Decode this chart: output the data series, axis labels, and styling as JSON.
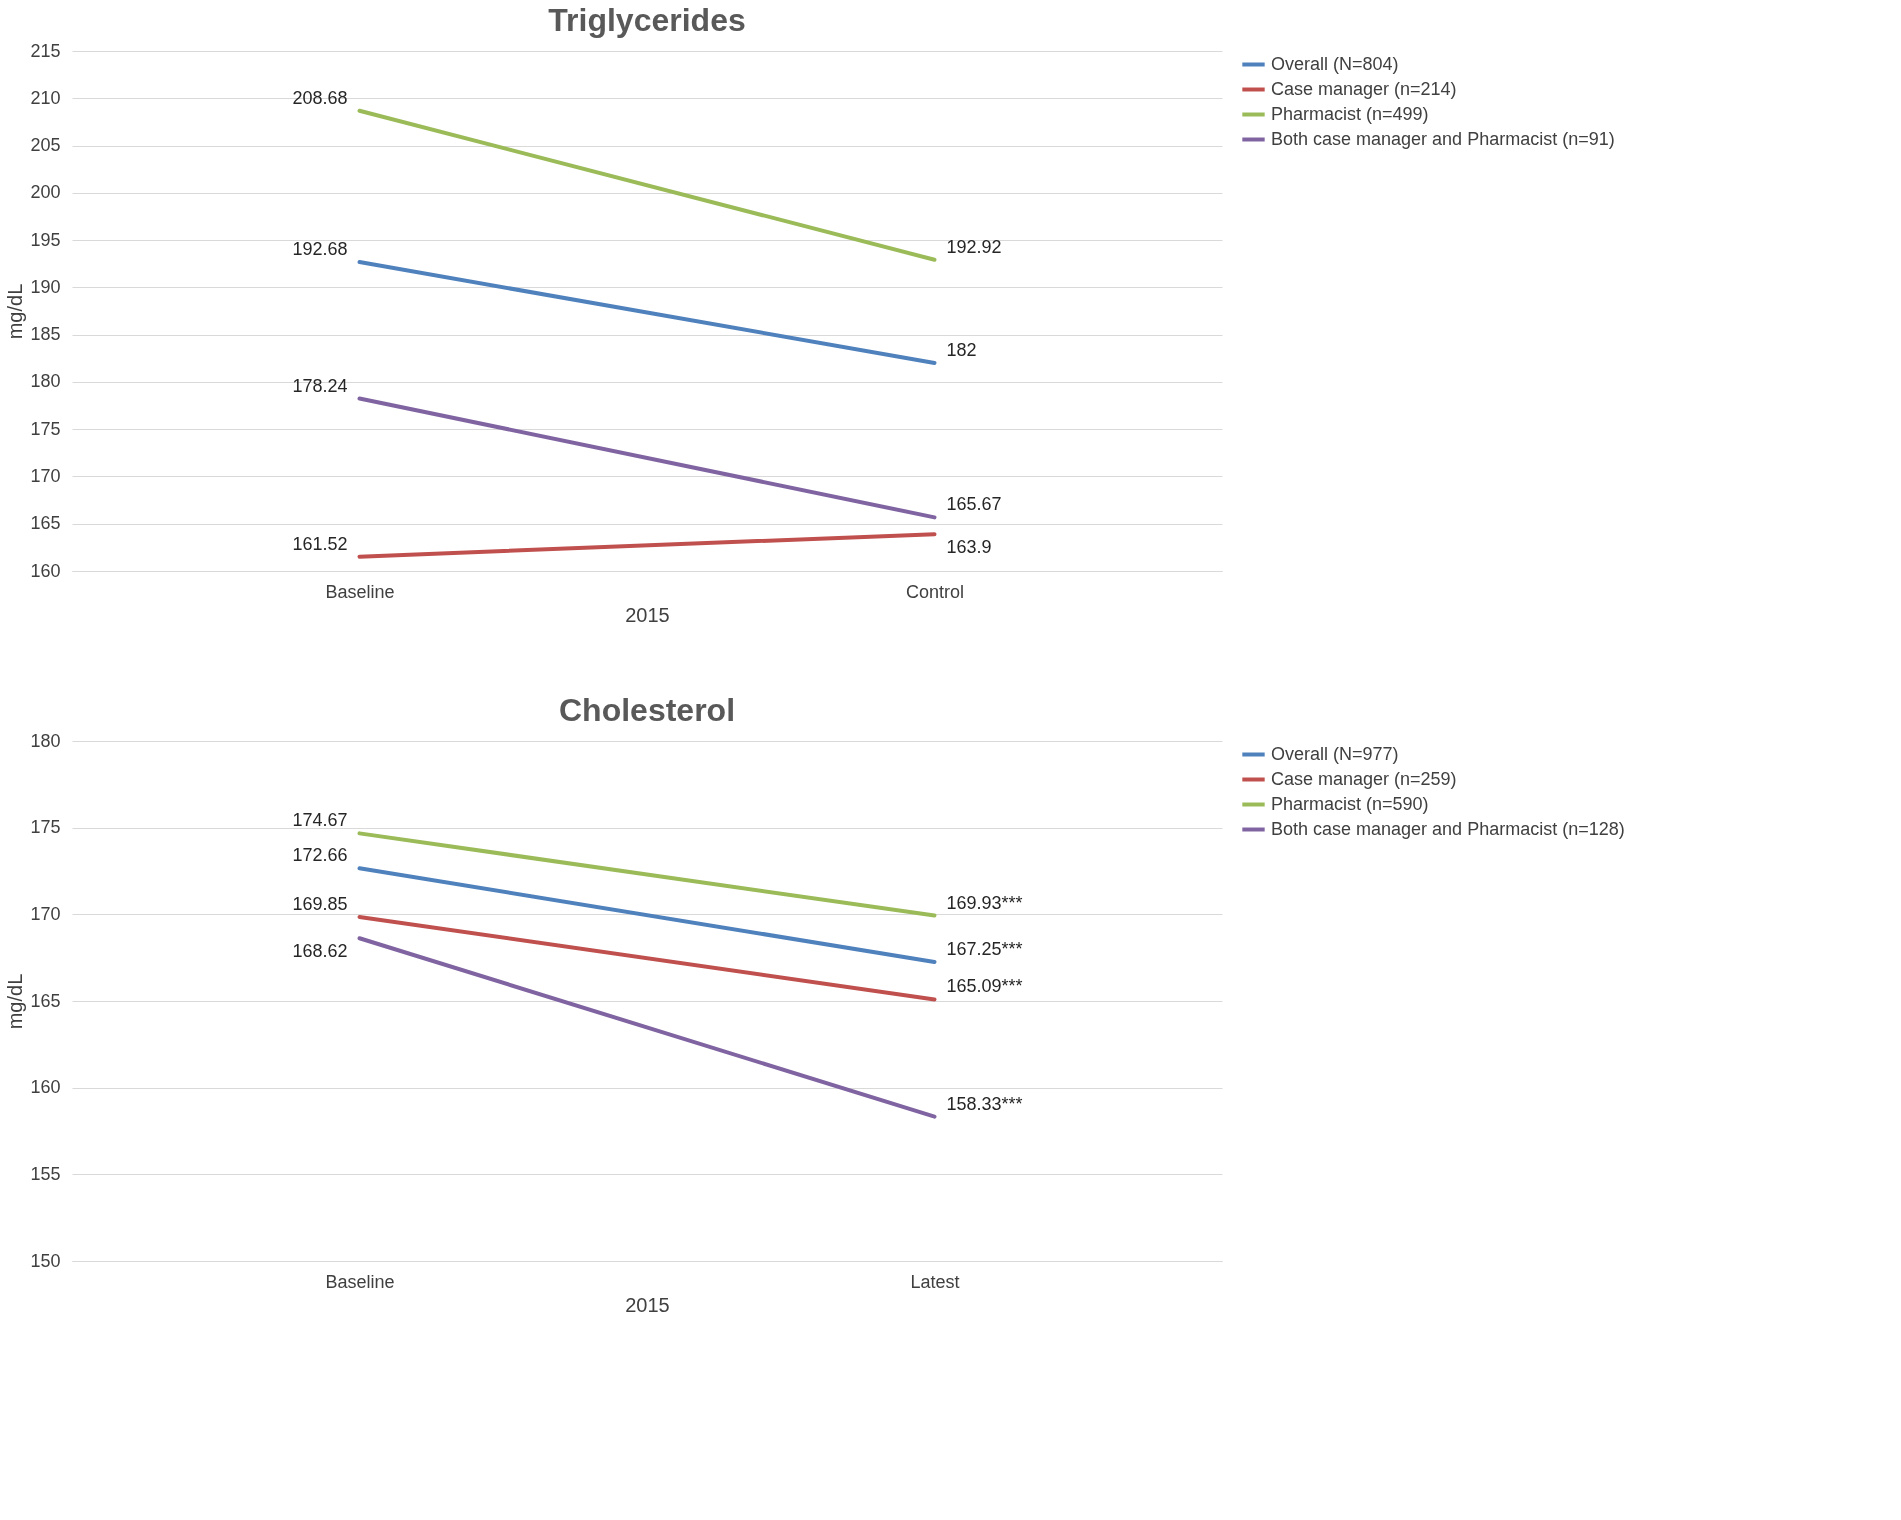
{
  "chart_data": [
    {
      "type": "line",
      "title": "Triglycerides",
      "categories": [
        "Baseline",
        "Control"
      ],
      "xlabel": "2015",
      "ylabel": "mg/dL",
      "ylim": [
        160,
        215
      ],
      "yticks": [
        160,
        165,
        170,
        175,
        180,
        185,
        190,
        195,
        200,
        205,
        210,
        215
      ],
      "grid": "y",
      "legend": "right",
      "data_labels": true,
      "series": [
        {
          "name": "Overall (N=804)",
          "color": "#4f81bd",
          "values": [
            192.68,
            182
          ]
        },
        {
          "name": "Case manager (n=214)",
          "color": "#c0504d",
          "values": [
            161.52,
            163.9
          ]
        },
        {
          "name": "Pharmacist (n=499)",
          "color": "#9bbb59",
          "values": [
            208.68,
            192.92
          ]
        },
        {
          "name": "Both case manager and Pharmacist (n=91)",
          "color": "#8064a2",
          "values": [
            178.24,
            165.67
          ]
        }
      ]
    },
    {
      "type": "line",
      "title": "Cholesterol",
      "categories": [
        "Baseline",
        "Latest"
      ],
      "xlabel": "2015",
      "ylabel": "mg/dL",
      "ylim": [
        150,
        180
      ],
      "yticks": [
        150,
        155,
        160,
        165,
        170,
        175,
        180
      ],
      "grid": "y",
      "legend": "right",
      "series": [
        {
          "name": "Overall (N=977)",
          "color": "#4f81bd",
          "values": [
            172.66,
            167.25
          ],
          "value_labels": [
            "172.66",
            "167.25***"
          ]
        },
        {
          "name": "Case manager (n=259)",
          "color": "#c0504d",
          "values": [
            169.85,
            165.09
          ],
          "value_labels": [
            "169.85",
            "165.09***"
          ]
        },
        {
          "name": "Pharmacist (n=590)",
          "color": "#9bbb59",
          "values": [
            174.67,
            169.93
          ],
          "value_labels": [
            "174.67",
            "169.93***"
          ]
        },
        {
          "name": "Both case manager and Pharmacist (n=128)",
          "color": "#8064a2",
          "values": [
            168.62,
            158.33
          ],
          "value_labels": [
            "168.62",
            "158.33***"
          ]
        }
      ]
    }
  ]
}
